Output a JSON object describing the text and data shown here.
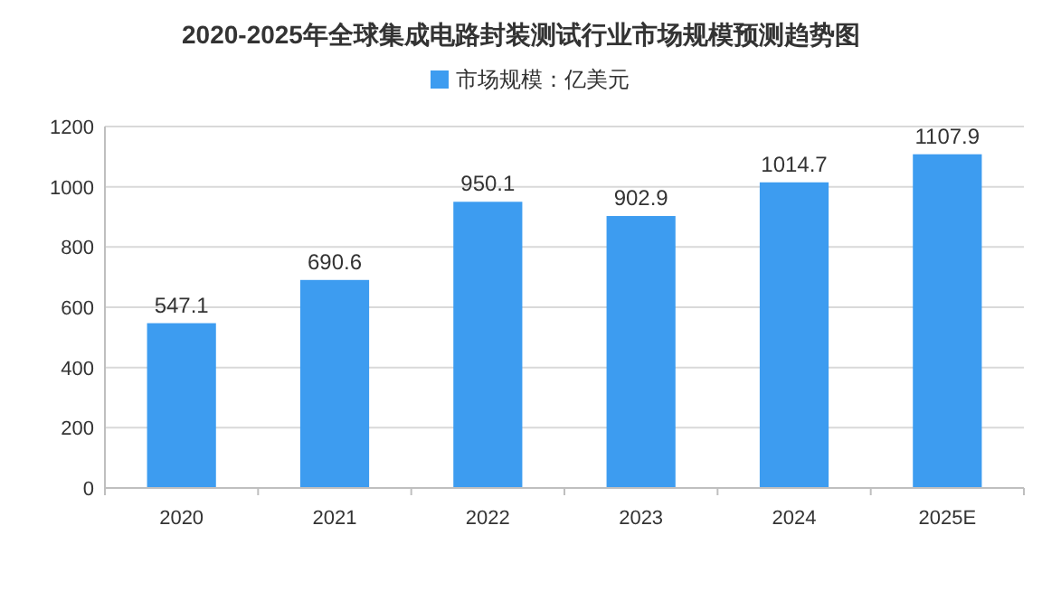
{
  "chart_data": {
    "type": "bar",
    "title": "2020-2025年全球集成电路封装测试行业市场规模预测趋势图",
    "categories": [
      "2020",
      "2021",
      "2022",
      "2023",
      "2024",
      "2025E"
    ],
    "series": [
      {
        "name": "市场规模：亿美元",
        "color": "#3d9cf0",
        "values": [
          547.1,
          690.6,
          950.1,
          902.9,
          1014.7,
          1107.9
        ]
      }
    ],
    "data_labels": true,
    "ylim": [
      0,
      1200
    ],
    "yticks": [
      0,
      200,
      400,
      600,
      800,
      1000,
      1200
    ],
    "grid": "y",
    "legend": "top"
  }
}
